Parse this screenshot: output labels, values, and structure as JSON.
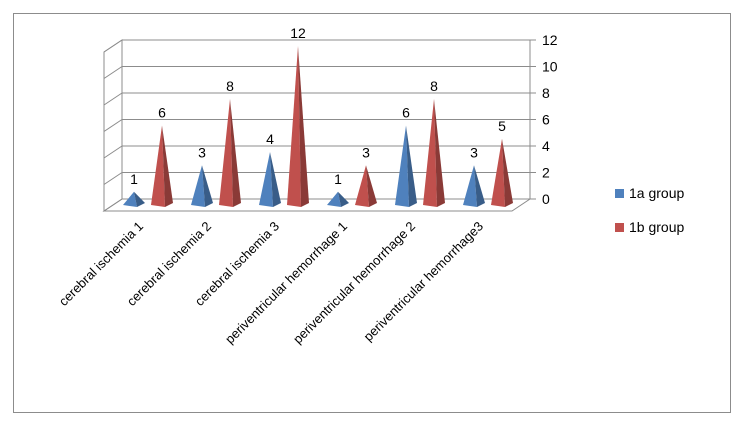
{
  "chart_data": {
    "type": "bar",
    "style": "3d-cone",
    "categories": [
      "cerebral ischemia 1",
      "cerebral ischemia 2",
      "cerebral ischemia 3",
      "periventricular hemorrhage 1",
      "periventricular hemorrhage 2",
      "periventricular hemorrhage3"
    ],
    "series": [
      {
        "name": "1a group",
        "color": "#4f81bd",
        "values": [
          1,
          3,
          4,
          1,
          6,
          3
        ]
      },
      {
        "name": "1b group",
        "color": "#c0504d",
        "values": [
          6,
          8,
          12,
          3,
          8,
          5
        ]
      }
    ],
    "title": "",
    "xlabel": "",
    "ylabel": "",
    "ylim": [
      0,
      12
    ],
    "yticks": [
      "0",
      "2",
      "4",
      "6",
      "8",
      "10",
      "12"
    ],
    "grid": true,
    "legend": "right",
    "data_labels": true
  }
}
